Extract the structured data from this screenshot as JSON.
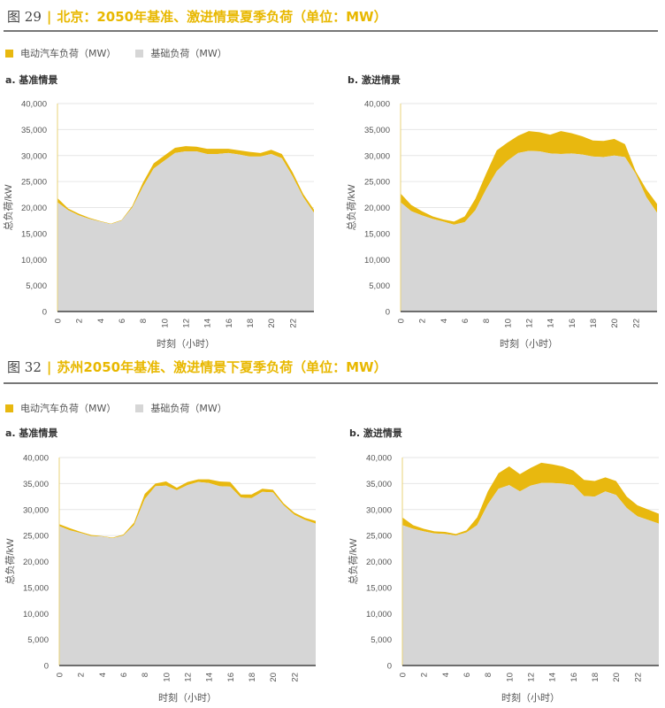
{
  "colors": {
    "ev": "#e8b80f",
    "base": "#d6d6d6",
    "grid": "#e6e6e6",
    "axis": "#444"
  },
  "figures": [
    {
      "number": "29",
      "title": "北京：2050年基准、激进情景夏季负荷（单位：MW）",
      "legend": [
        "电动汽车负荷（MW）",
        "基础负荷（MW）"
      ],
      "subtitles": [
        "a. 基准情景",
        "b. 激进情景"
      ]
    },
    {
      "number": "32",
      "title": "苏州2050年基准、激进情景下夏季负荷（单位：MW）",
      "legend": [
        "电动汽车负荷（MW）",
        "基础负荷（MW）"
      ],
      "subtitles": [
        "a. 基准情景",
        "b. 激进情景"
      ]
    }
  ],
  "chart_data": [
    {
      "type": "area",
      "title": "北京 a. 基准情景",
      "xlabel": "时刻（小时）",
      "ylabel": "总负荷/kW",
      "ylim": [
        0,
        40000
      ],
      "xlim": [
        0,
        24
      ],
      "yticks": [
        "0",
        "5,000",
        "10,000",
        "15,000",
        "20,000",
        "25,000",
        "30,000",
        "35,000",
        "40,000"
      ],
      "xticks": [
        "0",
        "2",
        "4",
        "6",
        "8",
        "10",
        "12",
        "14",
        "16",
        "18",
        "20",
        "22"
      ],
      "x": [
        0,
        1,
        2,
        3,
        4,
        5,
        6,
        7,
        8,
        9,
        10,
        11,
        12,
        13,
        14,
        15,
        16,
        17,
        18,
        19,
        20,
        21,
        22,
        23,
        24
      ],
      "series": [
        {
          "name": "基础负荷（MW）",
          "values": [
            21000,
            19500,
            18500,
            17800,
            17300,
            16800,
            17500,
            20000,
            24000,
            27500,
            29000,
            30500,
            30800,
            30800,
            30300,
            30300,
            30500,
            30200,
            29800,
            29800,
            30300,
            29500,
            26000,
            22000,
            19000
          ]
        },
        {
          "name": "总负荷",
          "values": [
            21800,
            19800,
            18800,
            18000,
            17400,
            16900,
            17600,
            20300,
            24800,
            28500,
            30000,
            31500,
            31800,
            31700,
            31300,
            31300,
            31300,
            31000,
            30700,
            30500,
            31100,
            30300,
            26800,
            22600,
            19600
          ]
        }
      ]
    },
    {
      "type": "area",
      "title": "北京 b. 激进情景",
      "xlabel": "时刻（小时）",
      "ylabel": "总负荷/kW",
      "ylim": [
        0,
        40000
      ],
      "xlim": [
        0,
        24
      ],
      "yticks": [
        "0",
        "5,000",
        "10,000",
        "15,000",
        "20,000",
        "25,000",
        "30,000",
        "35,000",
        "40,000"
      ],
      "xticks": [
        "0",
        "2",
        "4",
        "6",
        "8",
        "10",
        "12",
        "14",
        "16",
        "18",
        "20",
        "22"
      ],
      "x": [
        0,
        1,
        2,
        3,
        4,
        5,
        6,
        7,
        8,
        9,
        10,
        11,
        12,
        13,
        14,
        15,
        16,
        17,
        18,
        19,
        20,
        21,
        22,
        23,
        24
      ],
      "series": [
        {
          "name": "基础负荷（MW）",
          "values": [
            21000,
            19300,
            18500,
            17800,
            17300,
            16700,
            17200,
            19500,
            23500,
            27000,
            29000,
            30500,
            30900,
            30800,
            30400,
            30300,
            30400,
            30200,
            29800,
            29700,
            30000,
            29700,
            26500,
            22000,
            19000
          ]
        },
        {
          "name": "总负荷",
          "values": [
            22700,
            20500,
            19300,
            18300,
            17700,
            17300,
            18300,
            21700,
            26500,
            31000,
            32500,
            33800,
            34700,
            34500,
            34000,
            34700,
            34300,
            33700,
            32900,
            32800,
            33200,
            32200,
            27000,
            23500,
            20700
          ]
        }
      ]
    },
    {
      "type": "area",
      "title": "苏州 a. 基准情景",
      "xlabel": "时刻（小时）",
      "ylabel": "总负荷/kW",
      "ylim": [
        0,
        40000
      ],
      "xlim": [
        0,
        24
      ],
      "yticks": [
        "0",
        "5,000",
        "10,000",
        "15,000",
        "20,000",
        "25,000",
        "30,000",
        "35,000",
        "40,000"
      ],
      "xticks": [
        "0",
        "2",
        "4",
        "6",
        "8",
        "10",
        "12",
        "14",
        "16",
        "18",
        "20",
        "22"
      ],
      "x": [
        0,
        1,
        2,
        3,
        4,
        5,
        6,
        7,
        8,
        9,
        10,
        11,
        12,
        13,
        14,
        15,
        16,
        17,
        18,
        19,
        20,
        21,
        22,
        23,
        24
      ],
      "series": [
        {
          "name": "基础负荷（MW）",
          "values": [
            26800,
            26000,
            25500,
            24900,
            24800,
            24500,
            25000,
            27000,
            32000,
            34500,
            34600,
            33700,
            34700,
            35300,
            35100,
            34500,
            34400,
            32300,
            32200,
            33400,
            33300,
            30800,
            29000,
            28000,
            27300
          ]
        },
        {
          "name": "总负荷",
          "values": [
            27200,
            26400,
            25700,
            25100,
            24900,
            24600,
            25200,
            27500,
            33000,
            35000,
            35400,
            34200,
            35300,
            35800,
            35800,
            35400,
            35300,
            32900,
            32900,
            34000,
            33800,
            31200,
            29400,
            28400,
            27800
          ]
        }
      ]
    },
    {
      "type": "area",
      "title": "苏州 b. 激进情景",
      "xlabel": "时刻（小时）",
      "ylabel": "总负荷/kW",
      "ylim": [
        0,
        40000
      ],
      "xlim": [
        0,
        24
      ],
      "yticks": [
        "0",
        "5,000",
        "10,000",
        "15,000",
        "20,000",
        "25,000",
        "30,000",
        "35,000",
        "40,000"
      ],
      "xticks": [
        "0",
        "2",
        "4",
        "6",
        "8",
        "10",
        "12",
        "14",
        "16",
        "18",
        "20",
        "22"
      ],
      "x": [
        0,
        1,
        2,
        3,
        4,
        5,
        6,
        7,
        8,
        9,
        10,
        11,
        12,
        13,
        14,
        15,
        16,
        17,
        18,
        19,
        20,
        21,
        22,
        23,
        24
      ],
      "series": [
        {
          "name": "基础负荷（MW）",
          "values": [
            27000,
            26300,
            25800,
            25400,
            25300,
            25000,
            25600,
            27000,
            31000,
            34000,
            34700,
            33500,
            34600,
            35100,
            35100,
            35000,
            34700,
            32600,
            32500,
            33500,
            32800,
            30300,
            28700,
            28000,
            27300
          ]
        },
        {
          "name": "总负荷",
          "values": [
            28500,
            27000,
            26300,
            25800,
            25700,
            25300,
            26000,
            28500,
            33500,
            37000,
            38300,
            36800,
            38000,
            39000,
            38700,
            38300,
            37500,
            35700,
            35500,
            36200,
            35500,
            32500,
            30800,
            30000,
            29200
          ]
        }
      ]
    }
  ]
}
